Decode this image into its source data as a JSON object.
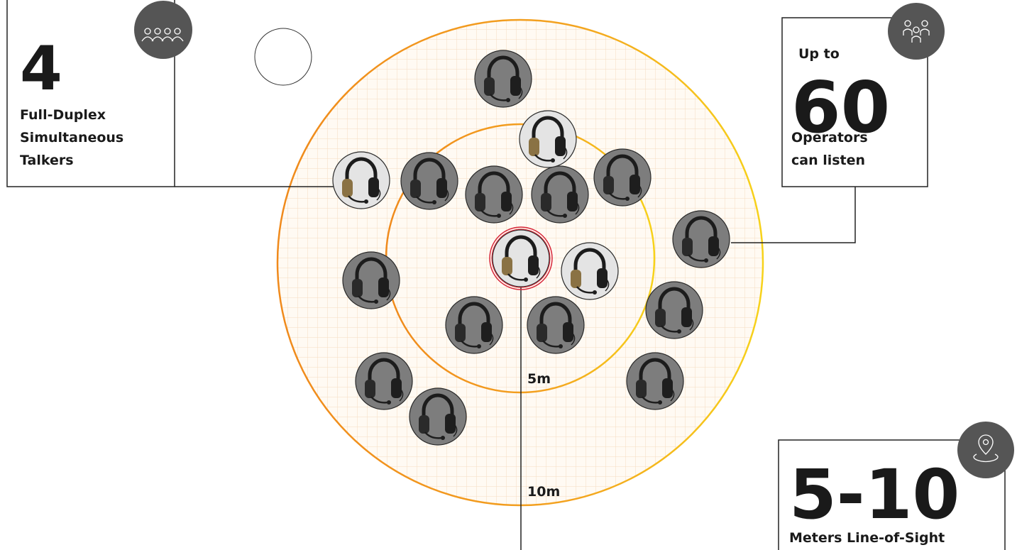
{
  "talkers": {
    "number": "4",
    "lines": [
      "Full-Duplex",
      "Simultaneous",
      "Talkers"
    ]
  },
  "listeners": {
    "prefix": "Up to",
    "number": "60",
    "lines": [
      "Operators",
      "can listen"
    ]
  },
  "range": {
    "number": "5-10",
    "caption": "Meters Line-of-Sight"
  },
  "rings": {
    "inner": "5m",
    "outer": "10m"
  }
}
